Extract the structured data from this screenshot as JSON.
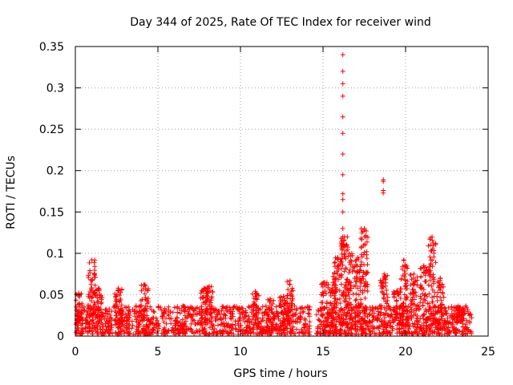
{
  "chart_data": {
    "type": "scatter",
    "title": "Day 344 of 2025, Rate Of TEC Index for receiver wind",
    "xlabel": "GPS time / hours",
    "ylabel": "ROTI / TECUs",
    "xlim": [
      0,
      25
    ],
    "ylim": [
      0,
      0.35
    ],
    "x_ticks": [
      "0",
      "5",
      "10",
      "15",
      "20",
      "25"
    ],
    "y_ticks": [
      "0",
      "0.05",
      "0.1",
      "0.15",
      "0.2",
      "0.25",
      "0.3",
      "0.35"
    ],
    "grid": true,
    "legend": "none",
    "marker": "+",
    "color": "#ff0000",
    "baseline": {
      "x_range": [
        0,
        24
      ],
      "typical_range": [
        0.0,
        0.035
      ],
      "gap_hours": [
        14.2,
        14.6
      ]
    },
    "clusters": [
      {
        "x": 0.2,
        "y_max": 0.052
      },
      {
        "x": 1.0,
        "y_max": 0.092
      },
      {
        "x": 1.4,
        "y_max": 0.058
      },
      {
        "x": 2.6,
        "y_max": 0.058
      },
      {
        "x": 4.2,
        "y_max": 0.062
      },
      {
        "x": 7.8,
        "y_max": 0.058
      },
      {
        "x": 8.1,
        "y_max": 0.06
      },
      {
        "x": 10.9,
        "y_max": 0.054
      },
      {
        "x": 11.8,
        "y_max": 0.045
      },
      {
        "x": 12.6,
        "y_max": 0.048
      },
      {
        "x": 13.0,
        "y_max": 0.067
      },
      {
        "x": 15.1,
        "y_max": 0.065
      },
      {
        "x": 15.6,
        "y_max": 0.072
      },
      {
        "x": 15.9,
        "y_max": 0.095
      },
      {
        "x": 16.3,
        "y_max": 0.12
      },
      {
        "x": 16.6,
        "y_max": 0.1
      },
      {
        "x": 17.1,
        "y_max": 0.095
      },
      {
        "x": 17.5,
        "y_max": 0.13
      },
      {
        "x": 18.7,
        "y_max": 0.075
      },
      {
        "x": 19.5,
        "y_max": 0.055
      },
      {
        "x": 19.9,
        "y_max": 0.092
      },
      {
        "x": 20.5,
        "y_max": 0.075
      },
      {
        "x": 21.1,
        "y_max": 0.085
      },
      {
        "x": 21.6,
        "y_max": 0.12
      },
      {
        "x": 22.1,
        "y_max": 0.07
      },
      {
        "x": 23.3,
        "y_max": 0.035
      }
    ],
    "spikes": [
      {
        "x": 16.2,
        "y": [
          0.34,
          0.32,
          0.305,
          0.29,
          0.265,
          0.245,
          0.22,
          0.195,
          0.172,
          0.165,
          0.15,
          0.13,
          0.12,
          0.11
        ]
      },
      {
        "x": 18.65,
        "y": [
          0.189,
          0.187,
          0.176,
          0.173
        ]
      }
    ]
  }
}
